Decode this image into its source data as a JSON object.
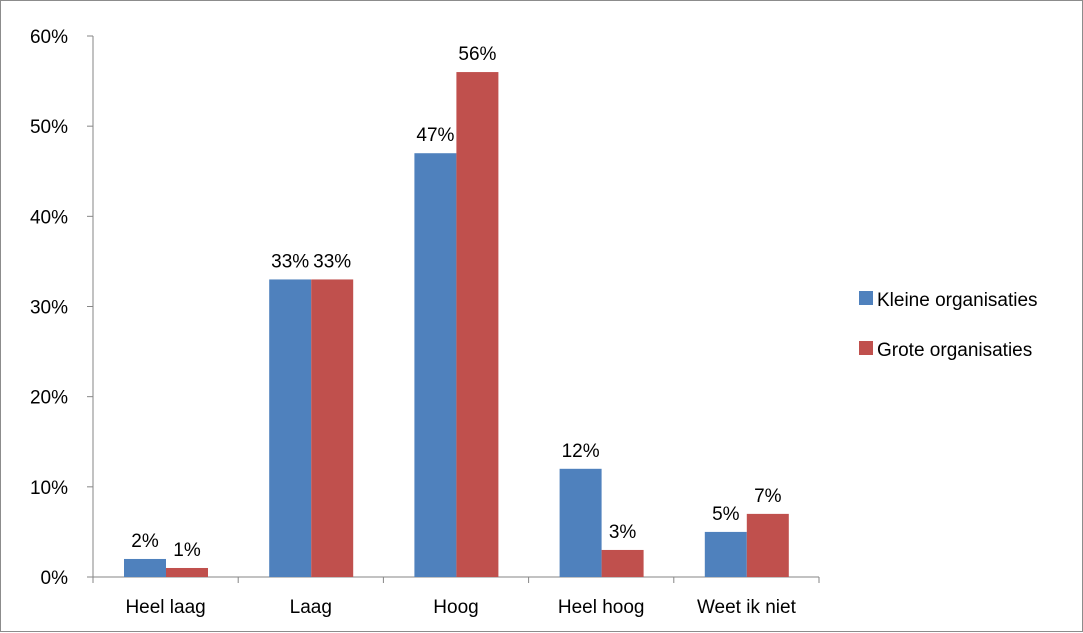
{
  "chart_data": {
    "type": "bar",
    "categories": [
      "Heel laag",
      "Laag",
      "Hoog",
      "Heel hoog",
      "Weet ik niet"
    ],
    "series": [
      {
        "name": "Kleine organisaties",
        "values": [
          2,
          33,
          47,
          12,
          5
        ],
        "labels": [
          "2%",
          "33%",
          "47%",
          "12%",
          "5%"
        ],
        "color": "#4F81BD"
      },
      {
        "name": "Grote organisaties",
        "values": [
          1,
          33,
          56,
          3,
          7
        ],
        "labels": [
          "1%",
          "33%",
          "56%",
          "3%",
          "7%"
        ],
        "color": "#C0504D"
      }
    ],
    "y_ticks": [
      "0%",
      "10%",
      "20%",
      "30%",
      "40%",
      "50%",
      "60%"
    ],
    "ylim": [
      0,
      60
    ],
    "title": "",
    "xlabel": "",
    "ylabel": "",
    "grid": false,
    "legend_position": "right"
  }
}
